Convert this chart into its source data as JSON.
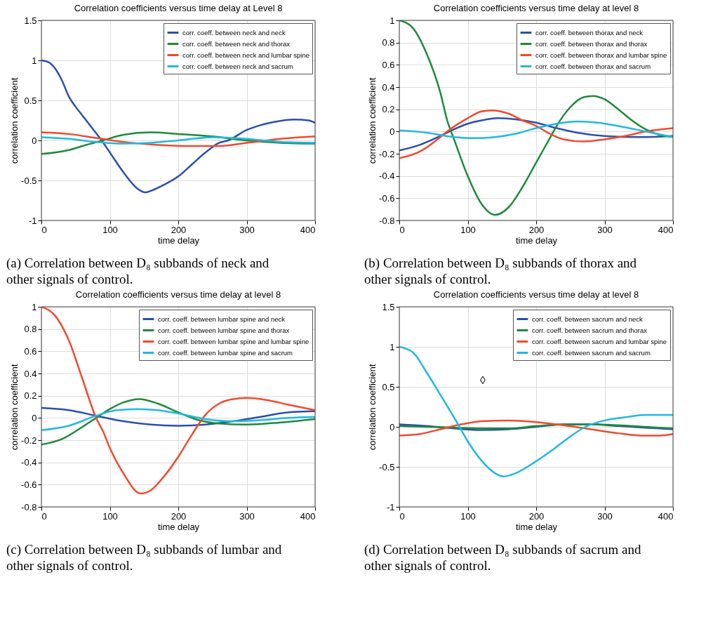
{
  "chart_data": [
    {
      "type": "line",
      "title": "Correlation coefficients versus time delay at Level 8",
      "xlabel": "time delay",
      "ylabel": "correlation coefficient",
      "xlim": [
        0,
        400
      ],
      "xticks": [
        0,
        100,
        200,
        300,
        400
      ],
      "ylim": [
        -1,
        1.5
      ],
      "yticks": [
        -1,
        -0.5,
        0,
        0.5,
        1,
        1.5
      ],
      "grid": true,
      "legend": "top right",
      "annotations": [
        "(a) Correlation between D₈ subbands of neck and other signals of control."
      ],
      "series": [
        {
          "name": "corr. coeff. between neck and neck",
          "color": "#2b4fad",
          "x": [
            0,
            10,
            20,
            30,
            40,
            50,
            60,
            70,
            88,
            100,
            120,
            140,
            152,
            160,
            180,
            200,
            220,
            240,
            260,
            273,
            300,
            320,
            340,
            370,
            390,
            400
          ],
          "values": [
            1,
            0.98,
            0.9,
            0.75,
            0.55,
            0.42,
            0.31,
            0.2,
            0,
            -0.15,
            -0.4,
            -0.6,
            -0.65,
            -0.63,
            -0.55,
            -0.45,
            -0.3,
            -0.15,
            -0.03,
            0,
            0.13,
            0.19,
            0.23,
            0.26,
            0.25,
            0.22
          ]
        },
        {
          "name": "corr. coeff. between neck and thorax",
          "color": "#1e8a3c",
          "x": [
            0,
            40,
            60,
            90,
            120,
            160,
            200,
            250,
            300,
            350,
            400
          ],
          "values": [
            -0.17,
            -0.12,
            -0.07,
            0,
            0.07,
            0.1,
            0.08,
            0.05,
            0,
            -0.03,
            -0.04
          ]
        },
        {
          "name": "corr. coeff. between neck and lumbar spine",
          "color": "#f04a2e",
          "x": [
            0,
            40,
            80,
            120,
            160,
            220,
            260,
            300,
            350,
            400
          ],
          "values": [
            0.1,
            0.08,
            0.03,
            -0.02,
            -0.05,
            -0.07,
            -0.07,
            -0.03,
            0.02,
            0.05
          ]
        },
        {
          "name": "corr. coeff. between neck and sacrum",
          "color": "#22b8e0",
          "x": [
            0,
            40,
            80,
            120,
            160,
            200,
            250,
            300,
            350,
            400
          ],
          "values": [
            0.04,
            0.02,
            -0.02,
            -0.04,
            -0.03,
            0,
            0.04,
            0.02,
            -0.02,
            -0.03
          ]
        }
      ]
    },
    {
      "type": "line",
      "title": "Correlation coefficients versus time delay at level 8",
      "xlabel": "time delay",
      "ylabel": "correlation coefficient",
      "xlim": [
        0,
        400
      ],
      "xticks": [
        0,
        100,
        200,
        300,
        400
      ],
      "ylim": [
        -0.8,
        1
      ],
      "yticks": [
        -0.8,
        -0.6,
        -0.4,
        -0.2,
        0,
        0.2,
        0.4,
        0.6,
        0.8,
        1
      ],
      "grid": true,
      "legend": "top right",
      "annotations": [
        "(b) Correlation between D₈ subbands of thorax and other signals of control."
      ],
      "series": [
        {
          "name": "corr. coeff. between thorax and neck",
          "color": "#2b4fad",
          "x": [
            0,
            30,
            60,
            80,
            100,
            120,
            145,
            170,
            200,
            230,
            260,
            300,
            350,
            400
          ],
          "values": [
            -0.17,
            -0.12,
            -0.04,
            0.02,
            0.07,
            0.1,
            0.12,
            0.11,
            0.08,
            0.03,
            -0.01,
            -0.04,
            -0.05,
            -0.04
          ]
        },
        {
          "name": "corr. coeff. between thorax and thorax",
          "color": "#1e8a3c",
          "x": [
            0,
            20,
            40,
            60,
            70,
            80,
            100,
            120,
            140,
            160,
            180,
            200,
            220,
            230,
            250,
            270,
            283,
            300,
            320,
            340,
            360,
            380,
            400
          ],
          "values": [
            1,
            0.93,
            0.7,
            0.35,
            0.1,
            -0.07,
            -0.4,
            -0.65,
            -0.75,
            -0.68,
            -0.5,
            -0.28,
            -0.06,
            0.05,
            0.22,
            0.31,
            0.32,
            0.29,
            0.2,
            0.1,
            0.02,
            -0.03,
            -0.05
          ]
        },
        {
          "name": "corr. coeff. between thorax and lumbar spine",
          "color": "#f04a2e",
          "x": [
            0,
            30,
            60,
            70,
            100,
            120,
            135,
            160,
            180,
            200,
            220,
            240,
            270,
            300,
            330,
            360,
            400
          ],
          "values": [
            -0.24,
            -0.18,
            -0.05,
            0,
            0.12,
            0.18,
            0.19,
            0.16,
            0.1,
            0.05,
            -0.02,
            -0.07,
            -0.09,
            -0.07,
            -0.04,
            0,
            0.03
          ]
        },
        {
          "name": "corr. coeff. between thorax and sacrum",
          "color": "#22b8e0",
          "x": [
            0,
            40,
            80,
            110,
            140,
            170,
            200,
            230,
            260,
            290,
            320,
            360,
            400
          ],
          "values": [
            0.01,
            -0.01,
            -0.05,
            -0.06,
            -0.05,
            -0.02,
            0.03,
            0.07,
            0.09,
            0.08,
            0.05,
            0,
            -0.05
          ]
        }
      ]
    },
    {
      "type": "line",
      "title": "Correlation coefficients versus time delay at level 8",
      "xlabel": "time delay",
      "ylabel": "correlation coefficient",
      "xlim": [
        0,
        400
      ],
      "xticks": [
        0,
        100,
        200,
        300,
        400
      ],
      "ylim": [
        -0.8,
        1
      ],
      "yticks": [
        -0.8,
        -0.6,
        -0.4,
        -0.2,
        0,
        0.2,
        0.4,
        0.6,
        0.8,
        1
      ],
      "grid": true,
      "legend": "top right",
      "annotations": [
        "(c) Correlation between D₈ subbands of lumbar and other signals of control."
      ],
      "series": [
        {
          "name": "corr. coeff. between lumbar spine and neck",
          "color": "#2b4fad",
          "x": [
            0,
            40,
            80,
            120,
            160,
            200,
            240,
            280,
            320,
            360,
            400
          ],
          "values": [
            0.09,
            0.07,
            0.02,
            -0.03,
            -0.06,
            -0.07,
            -0.06,
            -0.03,
            0.01,
            0.05,
            0.06
          ]
        },
        {
          "name": "corr. coeff. between lumbar spine and thorax",
          "color": "#1e8a3c",
          "x": [
            0,
            30,
            60,
            80,
            100,
            120,
            143,
            170,
            200,
            230,
            260,
            300,
            350,
            400
          ],
          "values": [
            -0.24,
            -0.19,
            -0.08,
            0,
            0.08,
            0.14,
            0.17,
            0.13,
            0.05,
            -0.02,
            -0.05,
            -0.06,
            -0.04,
            -0.01
          ]
        },
        {
          "name": "corr. coeff. between lumbar spine and lumbar spine",
          "color": "#f04a2e",
          "x": [
            0,
            20,
            40,
            60,
            80,
            90,
            100,
            120,
            145,
            160,
            180,
            200,
            220,
            240,
            260,
            280,
            300,
            330,
            360,
            400
          ],
          "values": [
            1,
            0.92,
            0.7,
            0.35,
            0,
            -0.12,
            -0.27,
            -0.5,
            -0.68,
            -0.65,
            -0.52,
            -0.35,
            -0.15,
            0.03,
            0.13,
            0.17,
            0.18,
            0.16,
            0.12,
            0.07
          ]
        },
        {
          "name": "corr. coeff. between lumbar spine and sacrum",
          "color": "#22b8e0",
          "x": [
            0,
            40,
            80,
            110,
            140,
            170,
            200,
            240,
            280,
            320,
            360,
            400
          ],
          "values": [
            -0.11,
            -0.07,
            0.02,
            0.07,
            0.08,
            0.07,
            0.04,
            -0.01,
            -0.03,
            -0.02,
            0,
            0.01
          ]
        }
      ]
    },
    {
      "type": "line",
      "title": "Correlation coefficients versus time delay at level 8",
      "xlabel": "time delay",
      "ylabel": "correlation coefficient",
      "xlim": [
        0,
        400
      ],
      "xticks": [
        0,
        100,
        200,
        300,
        400
      ],
      "ylim": [
        -1,
        1.5
      ],
      "yticks": [
        -1,
        -0.5,
        0,
        0.5,
        1,
        1.5
      ],
      "grid": true,
      "legend": "top right",
      "annotations": [
        "◊",
        "(d) Correlation between D₈ subbands of sacrum and other signals of control."
      ],
      "series": [
        {
          "name": "corr. coeff. between sacrum and neck",
          "color": "#2b4fad",
          "x": [
            0,
            40,
            80,
            120,
            160,
            200,
            240,
            280,
            320,
            360,
            400
          ],
          "values": [
            0.03,
            0.01,
            -0.02,
            -0.04,
            -0.03,
            0,
            0.03,
            0.03,
            0.01,
            -0.01,
            -0.03
          ]
        },
        {
          "name": "corr. coeff. between sacrum and thorax",
          "color": "#1e8a3c",
          "x": [
            0,
            40,
            80,
            120,
            160,
            200,
            240,
            280,
            320,
            360,
            400
          ],
          "values": [
            0.01,
            0,
            -0.01,
            -0.02,
            -0.02,
            0.01,
            0.03,
            0.03,
            0.02,
            0,
            -0.02
          ]
        },
        {
          "name": "corr. coeff. between sacrum and lumbar spine",
          "color": "#f04a2e",
          "x": [
            0,
            30,
            60,
            90,
            120,
            160,
            200,
            240,
            280,
            320,
            360,
            380,
            400
          ],
          "values": [
            -0.11,
            -0.09,
            -0.03,
            0.03,
            0.07,
            0.08,
            0.06,
            0.02,
            -0.03,
            -0.08,
            -0.11,
            -0.11,
            -0.09
          ]
        },
        {
          "name": "corr. coeff. between sacrum and sacrum",
          "color": "#22b8e0",
          "x": [
            0,
            20,
            40,
            60,
            70,
            88,
            100,
            120,
            140,
            152,
            170,
            200,
            230,
            250,
            272,
            300,
            330,
            360,
            380,
            400
          ],
          "values": [
            1,
            0.93,
            0.68,
            0.4,
            0.26,
            0,
            -0.18,
            -0.42,
            -0.58,
            -0.62,
            -0.58,
            -0.43,
            -0.25,
            -0.12,
            0,
            0.08,
            0.12,
            0.15,
            0.15,
            0.15
          ]
        }
      ]
    }
  ]
}
